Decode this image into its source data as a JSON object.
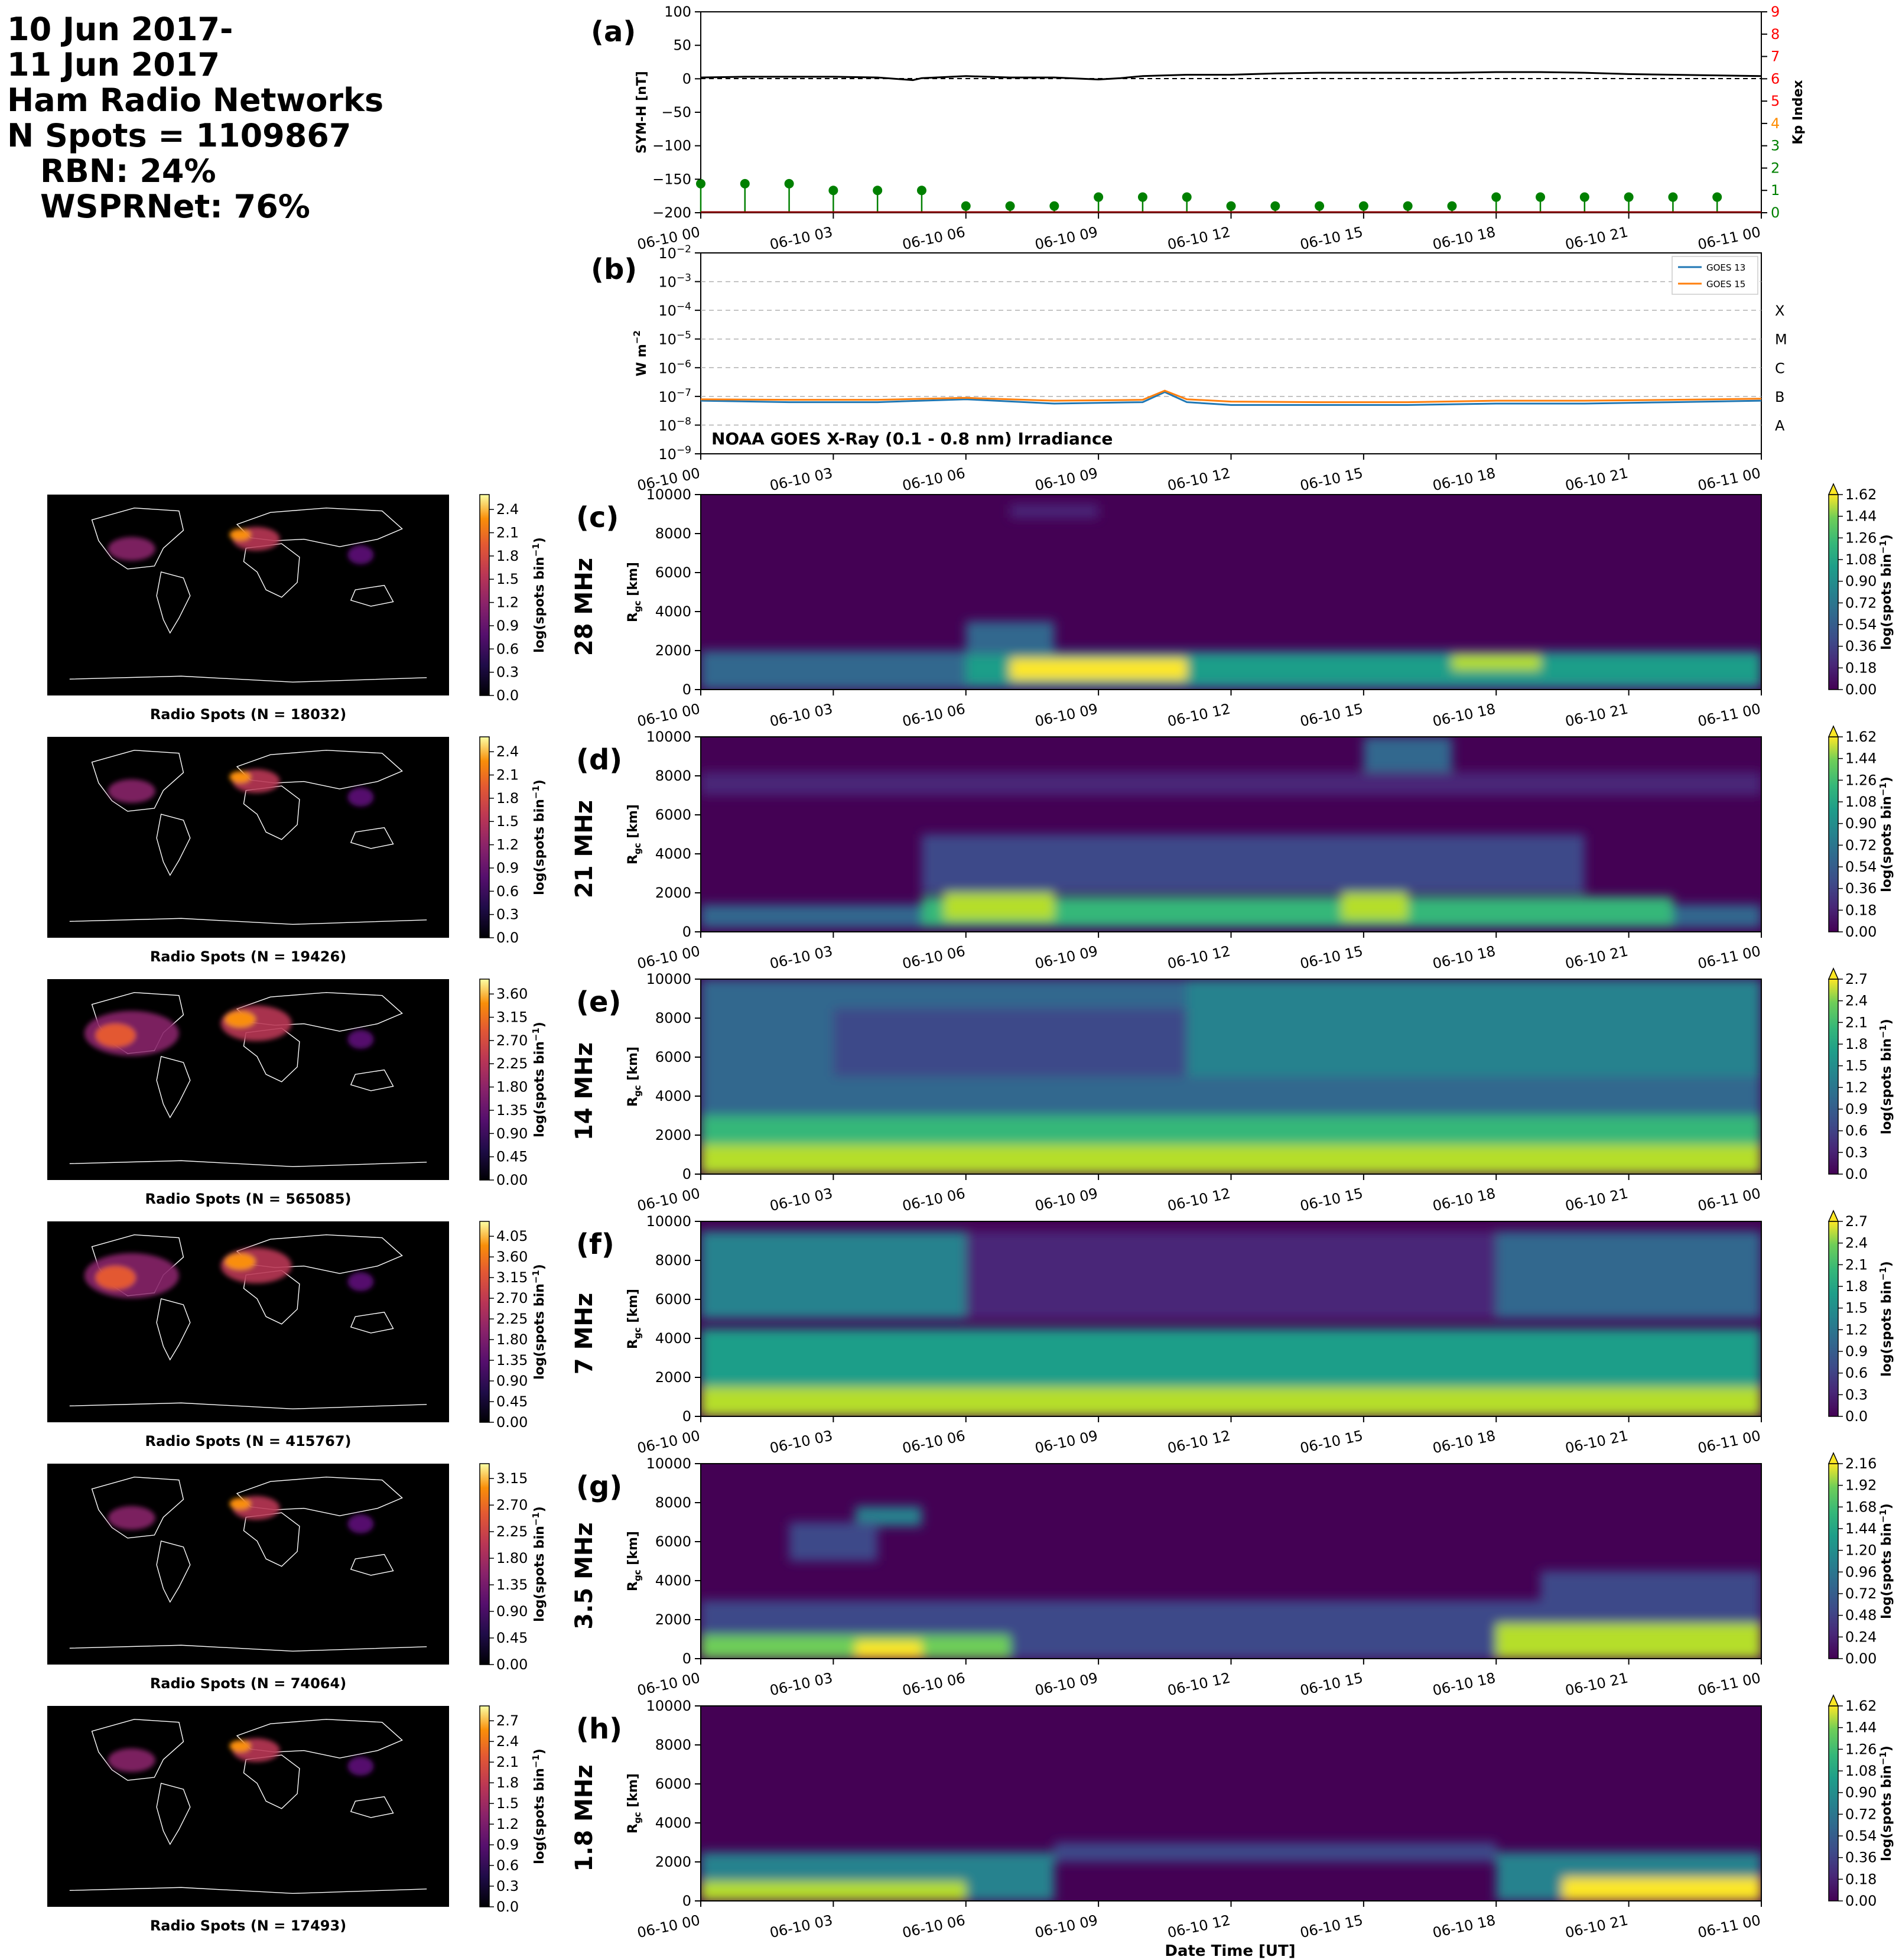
{
  "header": {
    "line1": "10 Jun 2017-",
    "line2": "11 Jun 2017",
    "line3": "Ham Radio Networks",
    "line4": "N Spots = 1109867",
    "line5": "RBN: 24%",
    "line6": "WSPRNet: 76%"
  },
  "time_ticks": [
    "06-10 00",
    "06-10 03",
    "06-10 06",
    "06-10 09",
    "06-10 12",
    "06-10 15",
    "06-10 18",
    "06-10 21",
    "06-11 00"
  ],
  "xlabel": "Date Time [UT]",
  "chart_data": [
    {
      "id": "a",
      "type": "line",
      "panel_label": "(a)",
      "ylabel": "SYM-H [nT]",
      "y2label": "Kp Index",
      "ylim": [
        -200,
        100
      ],
      "yticks": [
        100,
        50,
        0,
        -50,
        -100,
        -150,
        -200
      ],
      "y2lim": [
        0,
        9
      ],
      "y2ticks": [
        0,
        1,
        2,
        3,
        4,
        5,
        6,
        7,
        8,
        9
      ],
      "y2tick_colors": [
        "#008000",
        "#008000",
        "#008000",
        "#008000",
        "#ff8c00",
        "#ff0000",
        "#ff0000",
        "#ff0000",
        "#ff0000",
        "#ff0000"
      ],
      "symh": {
        "x_hours": [
          0,
          1,
          2,
          3,
          4,
          4.8,
          5,
          6,
          7,
          8,
          9,
          9.5,
          10,
          11,
          12,
          13,
          14,
          15,
          16,
          17,
          18,
          19,
          20,
          21,
          22,
          23,
          24
        ],
        "values": [
          2,
          3,
          3,
          3,
          2,
          -2,
          1,
          4,
          2,
          2,
          -1,
          1,
          4,
          6,
          6,
          8,
          9,
          9,
          9,
          9,
          10,
          10,
          9,
          7,
          6,
          5,
          4
        ]
      },
      "kp": {
        "x_hours": [
          0,
          1,
          2,
          3,
          4,
          5,
          6,
          7,
          8,
          9,
          10,
          11,
          12,
          13,
          14,
          15,
          16,
          17,
          18,
          19,
          20,
          21,
          22,
          23
        ],
        "values": [
          1.3,
          1.3,
          1.3,
          1,
          1,
          1,
          0.3,
          0.3,
          0.3,
          0.7,
          0.7,
          0.7,
          0.3,
          0.3,
          0.3,
          0.3,
          0.3,
          0.3,
          0.7,
          0.7,
          0.7,
          0.7,
          0.7,
          0.7
        ]
      },
      "colors": {
        "symh": "#000000",
        "kp": "#008000",
        "zero_line": "#000000"
      }
    },
    {
      "id": "b",
      "type": "line",
      "panel_label": "(b)",
      "ylabel": "W m^-2",
      "yscale": "log",
      "ylim_exp": [
        -9,
        -2
      ],
      "ytick_labels": [
        "10^-2",
        "10^-3",
        "10^-4",
        "10^-5",
        "10^-6",
        "10^-7",
        "10^-8",
        "10^-9"
      ],
      "flare_classes": [
        {
          "label": "X",
          "exp": -4
        },
        {
          "label": "M",
          "exp": -5
        },
        {
          "label": "C",
          "exp": -6
        },
        {
          "label": "B",
          "exp": -7
        },
        {
          "label": "A",
          "exp": -8
        }
      ],
      "annotation": "NOAA GOES X-Ray (0.1 - 0.8 nm) Irradiance",
      "series": [
        {
          "name": "GOES 13",
          "color": "#1f77b4",
          "x_hours": [
            0,
            2,
            4,
            6,
            8,
            10,
            10.5,
            11,
            12,
            14,
            16,
            18,
            20,
            22,
            24
          ],
          "log_values": [
            -7.15,
            -7.2,
            -7.2,
            -7.1,
            -7.25,
            -7.2,
            -6.85,
            -7.2,
            -7.3,
            -7.3,
            -7.3,
            -7.25,
            -7.25,
            -7.2,
            -7.15
          ]
        },
        {
          "name": "GOES 15",
          "color": "#ff7f0e",
          "x_hours": [
            0,
            2,
            4,
            6,
            8,
            10,
            10.5,
            11,
            12,
            14,
            16,
            18,
            20,
            22,
            24
          ],
          "log_values": [
            -7.1,
            -7.12,
            -7.12,
            -7.05,
            -7.15,
            -7.12,
            -6.8,
            -7.1,
            -7.18,
            -7.2,
            -7.2,
            -7.15,
            -7.15,
            -7.12,
            -7.08
          ]
        }
      ]
    },
    {
      "id": "c",
      "type": "heatmap",
      "panel_label": "(c)",
      "band": "28 MHz",
      "ylabel": "R_gc [km]",
      "ylim": [
        0,
        10000
      ],
      "yticks": [
        0,
        2000,
        4000,
        6000,
        8000,
        10000
      ],
      "cbar_label": "log(spots bin^-1)",
      "cbar_ticks": [
        "0.00",
        "0.18",
        "0.36",
        "0.54",
        "0.72",
        "0.90",
        "1.08",
        "1.26",
        "1.44",
        "1.62"
      ],
      "cbar_max": 1.62,
      "map_title": "Radio Spots (N = 18032)",
      "map_cbar_ticks": [
        "0.0",
        "0.3",
        "0.6",
        "0.9",
        "1.2",
        "1.5",
        "1.8",
        "2.1",
        "2.4"
      ],
      "blobs": [
        {
          "t0": 0,
          "t1": 24,
          "r0": 0,
          "r1": 2000,
          "v": 0.55
        },
        {
          "t0": 6,
          "t1": 24,
          "r0": 300,
          "r1": 1800,
          "v": 0.95
        },
        {
          "t0": 7,
          "t1": 11,
          "r0": 500,
          "r1": 1600,
          "v": 1.6
        },
        {
          "t0": 17,
          "t1": 19,
          "r0": 1000,
          "r1": 1800,
          "v": 1.4
        },
        {
          "t0": 6,
          "t1": 8,
          "r0": 2000,
          "r1": 3500,
          "v": 0.45
        },
        {
          "t0": 7,
          "t1": 9,
          "r0": 8800,
          "r1": 9500,
          "v": 0.2
        }
      ]
    },
    {
      "id": "d",
      "type": "heatmap",
      "panel_label": "(d)",
      "band": "21 MHz",
      "ylabel": "R_gc [km]",
      "ylim": [
        0,
        10000
      ],
      "yticks": [
        0,
        2000,
        4000,
        6000,
        8000,
        10000
      ],
      "cbar_label": "log(spots bin^-1)",
      "cbar_ticks": [
        "0.00",
        "0.18",
        "0.36",
        "0.54",
        "0.72",
        "0.90",
        "1.08",
        "1.26",
        "1.44",
        "1.62"
      ],
      "cbar_max": 1.62,
      "map_title": "Radio Spots (N = 19426)",
      "map_cbar_ticks": [
        "0.0",
        "0.3",
        "0.6",
        "0.9",
        "1.2",
        "1.5",
        "1.8",
        "2.1",
        "2.4"
      ],
      "blobs": [
        {
          "t0": 0,
          "t1": 24,
          "r0": 200,
          "r1": 1400,
          "v": 0.5
        },
        {
          "t0": 5,
          "t1": 22,
          "r0": 300,
          "r1": 1800,
          "v": 1.0
        },
        {
          "t0": 5.5,
          "t1": 8,
          "r0": 600,
          "r1": 2200,
          "v": 1.5
        },
        {
          "t0": 14.5,
          "t1": 16,
          "r0": 600,
          "r1": 2000,
          "v": 1.5
        },
        {
          "t0": 5,
          "t1": 20,
          "r0": 2000,
          "r1": 5000,
          "v": 0.4
        },
        {
          "t0": 15,
          "t1": 17,
          "r0": 8000,
          "r1": 10000,
          "v": 0.5
        },
        {
          "t0": 0,
          "t1": 24,
          "r0": 7000,
          "r1": 8200,
          "v": 0.15
        }
      ]
    },
    {
      "id": "e",
      "type": "heatmap",
      "panel_label": "(e)",
      "band": "14 MHz",
      "ylabel": "R_gc [km]",
      "ylim": [
        0,
        10000
      ],
      "yticks": [
        0,
        2000,
        4000,
        6000,
        8000,
        10000
      ],
      "cbar_label": "log(spots bin^-1)",
      "cbar_ticks": [
        "0.0",
        "0.3",
        "0.6",
        "0.9",
        "1.2",
        "1.5",
        "1.8",
        "2.1",
        "2.4",
        "2.7"
      ],
      "cbar_max": 2.7,
      "map_title": "Radio Spots (N = 565085)",
      "map_cbar_ticks": [
        "0.00",
        "0.45",
        "0.90",
        "1.35",
        "1.80",
        "2.25",
        "2.70",
        "3.15",
        "3.60"
      ],
      "blobs": [
        {
          "t0": 0,
          "t1": 24,
          "r0": 0,
          "r1": 10000,
          "v": 1.0
        },
        {
          "t0": 0,
          "t1": 24,
          "r0": 0,
          "r1": 3000,
          "v": 1.9
        },
        {
          "t0": 0,
          "t1": 24,
          "r0": 0,
          "r1": 1500,
          "v": 2.5
        },
        {
          "t0": 3,
          "t1": 11,
          "r0": 5000,
          "r1": 8500,
          "v": 0.6
        },
        {
          "t0": 11,
          "t1": 24,
          "r0": 5000,
          "r1": 10000,
          "v": 1.3
        }
      ]
    },
    {
      "id": "f",
      "type": "heatmap",
      "panel_label": "(f)",
      "band": "7 MHz",
      "ylabel": "R_gc [km]",
      "ylim": [
        0,
        10000
      ],
      "yticks": [
        0,
        2000,
        4000,
        6000,
        8000,
        10000
      ],
      "cbar_label": "log(spots bin^-1)",
      "cbar_ticks": [
        "0.0",
        "0.3",
        "0.6",
        "0.9",
        "1.2",
        "1.5",
        "1.8",
        "2.1",
        "2.4",
        "2.7"
      ],
      "cbar_max": 2.7,
      "map_title": "Radio Spots (N = 415767)",
      "map_cbar_ticks": [
        "0.00",
        "0.45",
        "0.90",
        "1.35",
        "1.80",
        "2.25",
        "2.70",
        "3.15",
        "3.60",
        "4.05"
      ],
      "blobs": [
        {
          "t0": 0,
          "t1": 24,
          "r0": 0,
          "r1": 4500,
          "v": 1.4
        },
        {
          "t0": 0,
          "t1": 24,
          "r0": 0,
          "r1": 1500,
          "v": 2.5
        },
        {
          "t0": 0,
          "t1": 6,
          "r0": 5000,
          "r1": 9500,
          "v": 1.1
        },
        {
          "t0": 6,
          "t1": 18,
          "r0": 5000,
          "r1": 9500,
          "v": 0.4
        },
        {
          "t0": 18,
          "t1": 24,
          "r0": 5000,
          "r1": 9500,
          "v": 0.9
        }
      ]
    },
    {
      "id": "g",
      "type": "heatmap",
      "panel_label": "(g)",
      "band": "3.5 MHz",
      "ylabel": "R_gc [km]",
      "ylim": [
        0,
        10000
      ],
      "yticks": [
        0,
        2000,
        4000,
        6000,
        8000,
        10000
      ],
      "cbar_label": "log(spots bin^-1)",
      "cbar_ticks": [
        "0.00",
        "0.24",
        "0.48",
        "0.72",
        "0.96",
        "1.20",
        "1.44",
        "1.68",
        "1.92",
        "2.16"
      ],
      "cbar_max": 2.16,
      "map_title": "Radio Spots (N = 74064)",
      "map_cbar_ticks": [
        "0.00",
        "0.45",
        "0.90",
        "1.35",
        "1.80",
        "2.25",
        "2.70",
        "3.15"
      ],
      "blobs": [
        {
          "t0": 0,
          "t1": 24,
          "r0": 0,
          "r1": 3000,
          "v": 0.6
        },
        {
          "t0": 0,
          "t1": 7,
          "r0": 0,
          "r1": 1200,
          "v": 1.8
        },
        {
          "t0": 3.5,
          "t1": 5,
          "r0": 0,
          "r1": 900,
          "v": 2.16
        },
        {
          "t0": 18,
          "t1": 24,
          "r0": 0,
          "r1": 1800,
          "v": 1.9
        },
        {
          "t0": 3.5,
          "t1": 5,
          "r0": 6800,
          "r1": 7800,
          "v": 1.0
        },
        {
          "t0": 2,
          "t1": 4,
          "r0": 5000,
          "r1": 7000,
          "v": 0.4
        },
        {
          "t0": 19,
          "t1": 24,
          "r0": 3000,
          "r1": 4500,
          "v": 0.4
        }
      ]
    },
    {
      "id": "h",
      "type": "heatmap",
      "panel_label": "(h)",
      "band": "1.8 MHz",
      "ylabel": "R_gc [km]",
      "ylim": [
        0,
        10000
      ],
      "yticks": [
        0,
        2000,
        4000,
        6000,
        8000,
        10000
      ],
      "cbar_label": "log(spots bin^-1)",
      "cbar_ticks": [
        "0.00",
        "0.18",
        "0.36",
        "0.54",
        "0.72",
        "0.90",
        "1.08",
        "1.26",
        "1.44",
        "1.62"
      ],
      "cbar_max": 1.62,
      "map_title": "Radio Spots (N = 17493)",
      "map_cbar_ticks": [
        "0.0",
        "0.3",
        "0.6",
        "0.9",
        "1.2",
        "1.5",
        "1.8",
        "2.1",
        "2.4",
        "2.7"
      ],
      "blobs": [
        {
          "t0": 0,
          "t1": 8,
          "r0": 0,
          "r1": 2500,
          "v": 0.7
        },
        {
          "t0": 0,
          "t1": 6,
          "r0": 0,
          "r1": 1000,
          "v": 1.5
        },
        {
          "t0": 18,
          "t1": 24,
          "r0": 0,
          "r1": 2500,
          "v": 0.8
        },
        {
          "t0": 19.5,
          "t1": 24,
          "r0": 0,
          "r1": 1200,
          "v": 1.6
        },
        {
          "t0": 8,
          "t1": 18,
          "r0": 2000,
          "r1": 3000,
          "v": 0.3
        }
      ]
    }
  ]
}
